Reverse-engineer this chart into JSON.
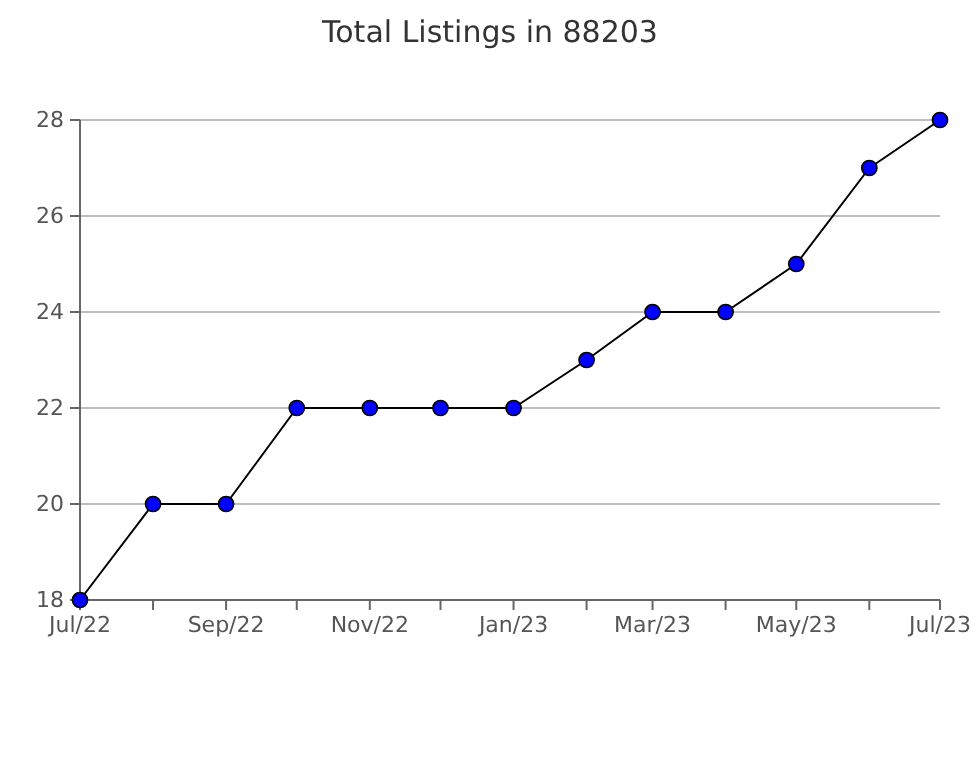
{
  "chart_data": {
    "type": "line",
    "title": "Total Listings in 88203",
    "x": [
      "2022-07",
      "2022-08",
      "2022-09",
      "2022-10",
      "2022-11",
      "2022-12",
      "2023-01",
      "2023-02",
      "2023-03",
      "2023-04",
      "2023-05",
      "2023-06",
      "2023-07"
    ],
    "series": [
      {
        "color": "#0000ff",
        "values": [
          18,
          20,
          20,
          22,
          22,
          22,
          22,
          23,
          24,
          24,
          25,
          27,
          28
        ]
      }
    ],
    "xlim": [
      "2022-07",
      "2023-07"
    ],
    "xticks": [
      {
        "value": "2022-07",
        "label": "Jul/22"
      },
      {
        "value": "2022-08",
        "label": null
      },
      {
        "value": "2022-09",
        "label": "Sep/22"
      },
      {
        "value": "2022-10",
        "label": null
      },
      {
        "value": "2022-11",
        "label": "Nov/22"
      },
      {
        "value": "2022-12",
        "label": null
      },
      {
        "value": "2023-01",
        "label": "Jan/23"
      },
      {
        "value": "2023-02",
        "label": null
      },
      {
        "value": "2023-03",
        "label": "Mar/23"
      },
      {
        "value": "2023-04",
        "label": null
      },
      {
        "value": "2023-05",
        "label": "May/23"
      },
      {
        "value": "2023-06",
        "label": null
      },
      {
        "value": "2023-07",
        "label": "Jul/23"
      }
    ],
    "ylim": [
      18,
      28
    ],
    "yticks": [
      18,
      20,
      22,
      24,
      26,
      28
    ],
    "grid": "y",
    "marker": "circle",
    "line_style": "solid"
  }
}
